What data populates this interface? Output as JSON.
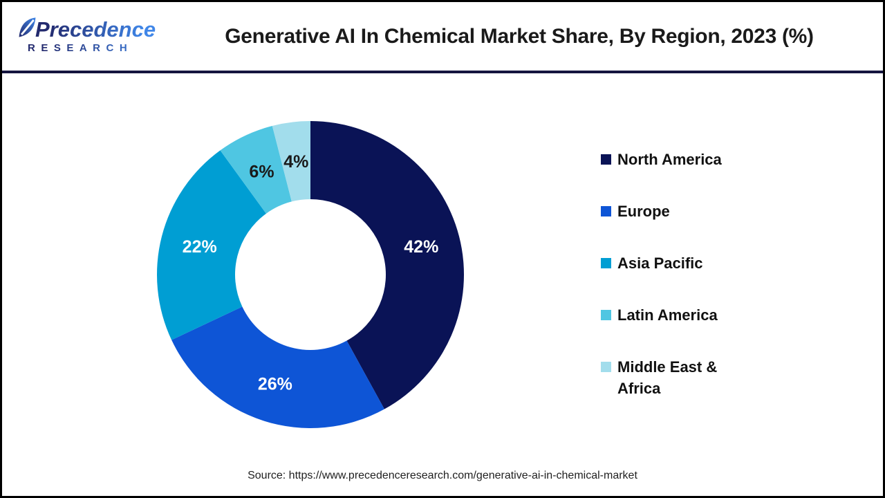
{
  "logo": {
    "brand_line1": "Precedence",
    "brand_line2": "RESEARCH"
  },
  "header": {
    "title": "Generative AI In Chemical Market Share, By Region, 2023 (%)"
  },
  "theme": {
    "page_border_color": "#000000",
    "header_rule_color": "#15153f",
    "brand_gradient_start": "#232a6e",
    "brand_gradient_end": "#3f86e8"
  },
  "chart_data": {
    "type": "pie",
    "subtype": "donut",
    "title": "Generative AI In Chemical Market Share, By Region, 2023 (%)",
    "year": "2023",
    "value_suffix": "%",
    "start_angle_deg": 0,
    "direction": "clockwise",
    "inner_radius_ratio": 0.49,
    "legend_position": "right",
    "segments": [
      {
        "label": "North America",
        "value": 42,
        "color": "#0a1356",
        "label_color": "#ffffff"
      },
      {
        "label": "Europe",
        "value": 26,
        "color": "#0e55d6",
        "label_color": "#ffffff"
      },
      {
        "label": "Asia Pacific",
        "value": 22,
        "color": "#009ed3",
        "label_color": "#ffffff"
      },
      {
        "label": "Latin America",
        "value": 6,
        "color": "#4fc6e2",
        "label_color": "#1a1a1a"
      },
      {
        "label": "Middle East & Africa",
        "value": 4,
        "color": "#a2ddec",
        "label_color": "#1a1a1a"
      }
    ]
  },
  "footer": {
    "source": "Source: https://www.precedenceresearch.com/generative-ai-in-chemical-market"
  }
}
